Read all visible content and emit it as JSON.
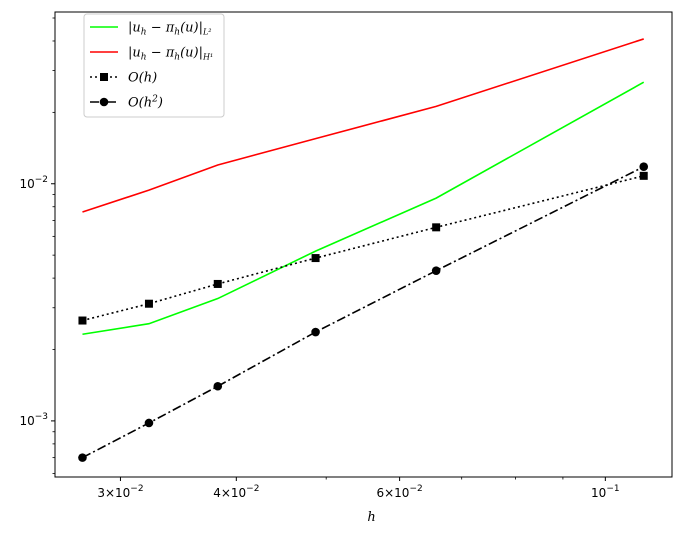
{
  "chart_data": {
    "type": "line",
    "x_scale": "log",
    "y_scale": "log",
    "xlabel": "h",
    "ylabel": "",
    "xlim": [
      0.0255,
      0.118
    ],
    "ylim": [
      0.00058,
      0.053
    ],
    "x": [
      0.0273,
      0.0322,
      0.0382,
      0.0487,
      0.0657,
      0.11
    ],
    "series": [
      {
        "name": "|u_h − π_h(u)|_{L²}",
        "color": "#00ff00",
        "style": "solid",
        "marker": "none",
        "values": [
          0.00232,
          0.00257,
          0.00328,
          0.0052,
          0.0087,
          0.0268
        ]
      },
      {
        "name": "|u_h − π_h(u)|_{H¹}",
        "color": "#ff0000",
        "style": "solid",
        "marker": "none",
        "values": [
          0.0076,
          0.0094,
          0.012,
          0.0155,
          0.0212,
          0.0408
        ]
      },
      {
        "name": "O(h)",
        "color": "#000000",
        "style": "dotted",
        "marker": "square",
        "values": [
          0.00265,
          0.00312,
          0.00378,
          0.00486,
          0.00655,
          0.0108
        ]
      },
      {
        "name": "O(h²)",
        "color": "#000000",
        "style": "dashdot",
        "marker": "circle",
        "values": [
          0.0007,
          0.00098,
          0.0014,
          0.00237,
          0.0043,
          0.0118
        ]
      }
    ],
    "x_ticks_major": [
      {
        "value": 0.03,
        "mantissa": "3×10",
        "exp": "−2"
      },
      {
        "value": 0.04,
        "mantissa": "4×10",
        "exp": "−2"
      },
      {
        "value": 0.06,
        "mantissa": "6×10",
        "exp": "−2"
      },
      {
        "value": 0.1,
        "mantissa": "10",
        "exp": "−1"
      }
    ],
    "y_ticks_major": [
      {
        "value": 0.001,
        "mantissa": "10",
        "exp": "−3"
      },
      {
        "value": 0.01,
        "mantissa": "10",
        "exp": "−2"
      }
    ],
    "legend_placement": "upper-left",
    "grid": false
  }
}
